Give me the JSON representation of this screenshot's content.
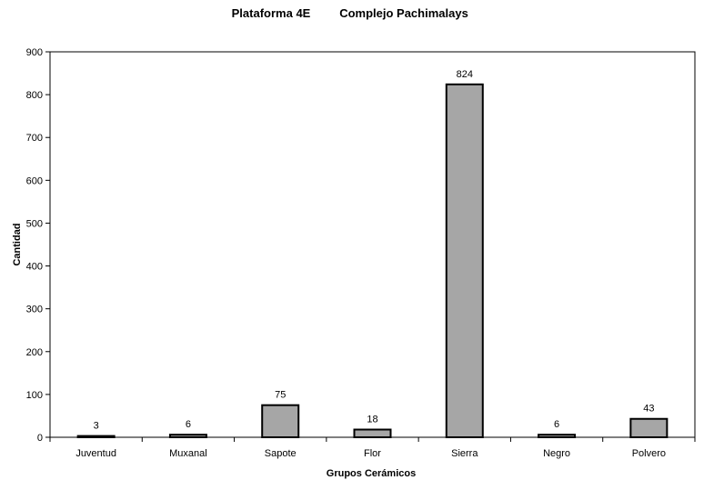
{
  "chart_data": {
    "type": "bar",
    "title": "Plataforma 4E",
    "subtitle": "Complejo Pachimalays",
    "xlabel": "Grupos Cerámicos",
    "ylabel": "Cantidad",
    "categories": [
      "Juventud",
      "Muxanal",
      "Sapote",
      "Flor",
      "Sierra",
      "Negro",
      "Polvero"
    ],
    "values": [
      3,
      6,
      75,
      18,
      824,
      6,
      43
    ],
    "data_labels": [
      "3",
      "6",
      "75",
      "18",
      "824",
      "6",
      "43"
    ],
    "ylim": [
      0,
      900
    ],
    "yticks": [
      0,
      100,
      200,
      300,
      400,
      500,
      600,
      700,
      800,
      900
    ],
    "ytick_labels": [
      "0",
      "100",
      "200",
      "300",
      "400",
      "500",
      "600",
      "700",
      "800",
      "900"
    ],
    "grid": false,
    "legend": "none",
    "bar_color": "#a6a6a6",
    "bar_edge_color": "#000000"
  }
}
